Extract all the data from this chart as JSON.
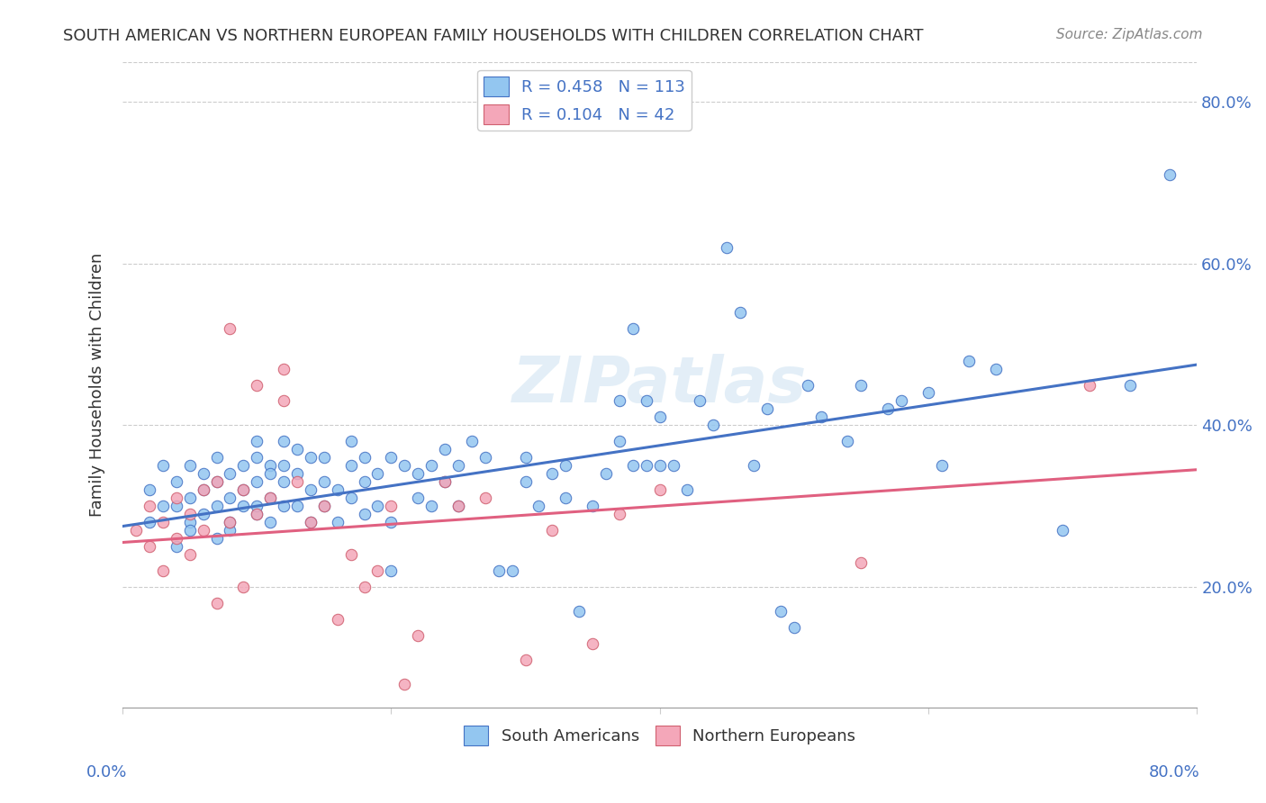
{
  "title": "SOUTH AMERICAN VS NORTHERN EUROPEAN FAMILY HOUSEHOLDS WITH CHILDREN CORRELATION CHART",
  "source": "Source: ZipAtlas.com",
  "ylabel": "Family Households with Children",
  "ytick_labels": [
    "20.0%",
    "40.0%",
    "60.0%",
    "80.0%"
  ],
  "ytick_values": [
    0.2,
    0.4,
    0.6,
    0.8
  ],
  "xlim": [
    0.0,
    0.8
  ],
  "ylim": [
    0.05,
    0.85
  ],
  "legend_sa_r": "0.458",
  "legend_sa_n": "113",
  "legend_ne_r": "0.104",
  "legend_ne_n": "42",
  "legend_labels": [
    "South Americans",
    "Northern Europeans"
  ],
  "sa_color": "#93c6f0",
  "ne_color": "#f4a7b9",
  "sa_edge_color": "#4472c4",
  "ne_edge_color": "#d06070",
  "sa_line_color": "#4472c4",
  "ne_line_color": "#e06080",
  "watermark": "ZIPatlas",
  "title_color": "#333333",
  "axis_label_color": "#4472c4",
  "background_color": "#ffffff",
  "sa_x": [
    0.02,
    0.02,
    0.03,
    0.03,
    0.04,
    0.04,
    0.04,
    0.05,
    0.05,
    0.05,
    0.05,
    0.06,
    0.06,
    0.06,
    0.07,
    0.07,
    0.07,
    0.07,
    0.08,
    0.08,
    0.08,
    0.08,
    0.09,
    0.09,
    0.09,
    0.1,
    0.1,
    0.1,
    0.1,
    0.1,
    0.11,
    0.11,
    0.11,
    0.11,
    0.12,
    0.12,
    0.12,
    0.12,
    0.13,
    0.13,
    0.13,
    0.14,
    0.14,
    0.14,
    0.15,
    0.15,
    0.15,
    0.16,
    0.16,
    0.17,
    0.17,
    0.17,
    0.18,
    0.18,
    0.18,
    0.19,
    0.19,
    0.2,
    0.2,
    0.2,
    0.21,
    0.22,
    0.22,
    0.23,
    0.23,
    0.24,
    0.24,
    0.25,
    0.25,
    0.26,
    0.27,
    0.28,
    0.29,
    0.3,
    0.3,
    0.31,
    0.32,
    0.33,
    0.33,
    0.34,
    0.35,
    0.36,
    0.37,
    0.37,
    0.38,
    0.38,
    0.39,
    0.39,
    0.4,
    0.4,
    0.41,
    0.42,
    0.43,
    0.44,
    0.45,
    0.46,
    0.47,
    0.48,
    0.49,
    0.5,
    0.51,
    0.52,
    0.54,
    0.55,
    0.57,
    0.58,
    0.6,
    0.61,
    0.63,
    0.65,
    0.7,
    0.75,
    0.78
  ],
  "sa_y": [
    0.28,
    0.32,
    0.3,
    0.35,
    0.25,
    0.3,
    0.33,
    0.28,
    0.31,
    0.35,
    0.27,
    0.29,
    0.32,
    0.34,
    0.26,
    0.3,
    0.33,
    0.36,
    0.27,
    0.31,
    0.34,
    0.28,
    0.3,
    0.35,
    0.32,
    0.29,
    0.33,
    0.36,
    0.3,
    0.38,
    0.28,
    0.31,
    0.35,
    0.34,
    0.3,
    0.33,
    0.35,
    0.38,
    0.3,
    0.34,
    0.37,
    0.28,
    0.32,
    0.36,
    0.3,
    0.33,
    0.36,
    0.28,
    0.32,
    0.31,
    0.35,
    0.38,
    0.29,
    0.33,
    0.36,
    0.3,
    0.34,
    0.22,
    0.28,
    0.36,
    0.35,
    0.31,
    0.34,
    0.3,
    0.35,
    0.33,
    0.37,
    0.3,
    0.35,
    0.38,
    0.36,
    0.22,
    0.22,
    0.33,
    0.36,
    0.3,
    0.34,
    0.31,
    0.35,
    0.17,
    0.3,
    0.34,
    0.38,
    0.43,
    0.35,
    0.52,
    0.35,
    0.43,
    0.35,
    0.41,
    0.35,
    0.32,
    0.43,
    0.4,
    0.62,
    0.54,
    0.35,
    0.42,
    0.17,
    0.15,
    0.45,
    0.41,
    0.38,
    0.45,
    0.42,
    0.43,
    0.44,
    0.35,
    0.48,
    0.47,
    0.27,
    0.45,
    0.71
  ],
  "ne_x": [
    0.01,
    0.02,
    0.02,
    0.03,
    0.03,
    0.04,
    0.04,
    0.05,
    0.05,
    0.06,
    0.06,
    0.07,
    0.07,
    0.08,
    0.08,
    0.09,
    0.09,
    0.1,
    0.1,
    0.11,
    0.12,
    0.12,
    0.13,
    0.14,
    0.15,
    0.16,
    0.17,
    0.18,
    0.19,
    0.2,
    0.21,
    0.22,
    0.24,
    0.25,
    0.27,
    0.3,
    0.32,
    0.35,
    0.37,
    0.4,
    0.55,
    0.72
  ],
  "ne_y": [
    0.27,
    0.25,
    0.3,
    0.22,
    0.28,
    0.26,
    0.31,
    0.24,
    0.29,
    0.27,
    0.32,
    0.18,
    0.33,
    0.28,
    0.52,
    0.2,
    0.32,
    0.29,
    0.45,
    0.31,
    0.47,
    0.43,
    0.33,
    0.28,
    0.3,
    0.16,
    0.24,
    0.2,
    0.22,
    0.3,
    0.08,
    0.14,
    0.33,
    0.3,
    0.31,
    0.11,
    0.27,
    0.13,
    0.29,
    0.32,
    0.23,
    0.45
  ],
  "sa_trend_x": [
    0.0,
    0.8
  ],
  "sa_trend_y": [
    0.275,
    0.475
  ],
  "ne_trend_x": [
    0.0,
    0.8
  ],
  "ne_trend_y": [
    0.255,
    0.345
  ]
}
